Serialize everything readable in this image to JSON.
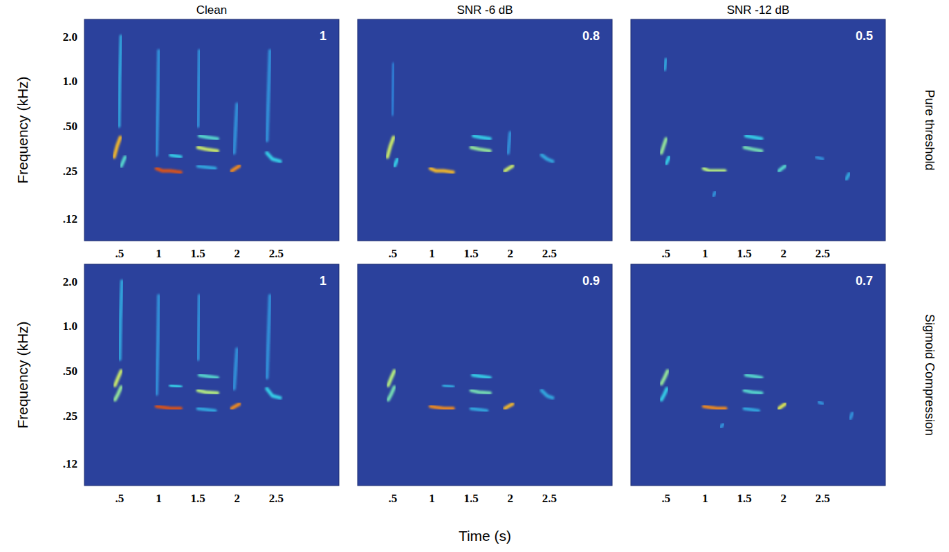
{
  "x_label": "Time (s)",
  "column_titles": [
    "Clean",
    "SNR -6 dB",
    "SNR -12 dB"
  ],
  "rows": [
    {
      "label": "Pure threshold",
      "y_label": "Frequency (kHz)"
    },
    {
      "label": "Sigmoid Compression",
      "y_label": "Frequency (kHz)"
    }
  ],
  "chart_data": [
    {
      "type": "spectrogram",
      "score": 1,
      "xlim": [
        0.05,
        3.3
      ],
      "ylim": [
        0.085,
        2.6
      ],
      "log": "y",
      "xticks": [
        {
          "value": 0.5,
          "label": ".5"
        },
        1,
        1.5,
        2,
        2.5
      ],
      "yticks": [
        {
          "value": 0.12,
          "label": ".12"
        },
        {
          "value": 0.25,
          "label": ".25"
        },
        {
          "value": 0.5,
          "label": ".50"
        },
        {
          "value": 1,
          "label": "1.0"
        },
        {
          "value": 2,
          "label": "2.0"
        }
      ],
      "syllables": [
        {
          "x": [
            0.43,
            0.47,
            0.51
          ],
          "y": [
            0.31,
            0.37,
            0.42
          ],
          "level": 0.85
        },
        {
          "x": [
            0.52,
            0.57
          ],
          "y": [
            0.27,
            0.31
          ],
          "level": 0.5
        },
        {
          "x": [
            0.49,
            0.5,
            0.52
          ],
          "y": [
            0.5,
            1.0,
            2.0
          ],
          "level": 0.35
        },
        {
          "x": [
            0.97,
            1.05,
            1.15,
            1.28
          ],
          "y": [
            0.26,
            0.25,
            0.25,
            0.245
          ],
          "level": 0.95
        },
        {
          "x": [
            1.15,
            1.28
          ],
          "y": [
            0.32,
            0.31
          ],
          "level": 0.45
        },
        {
          "x": [
            0.97,
            0.99,
            1.0
          ],
          "y": [
            0.32,
            0.8,
            1.6
          ],
          "level": 0.3
        },
        {
          "x": [
            1.5,
            1.6,
            1.75
          ],
          "y": [
            0.36,
            0.35,
            0.34
          ],
          "level": 0.7
        },
        {
          "x": [
            1.52,
            1.62,
            1.75
          ],
          "y": [
            0.43,
            0.42,
            0.41
          ],
          "level": 0.5
        },
        {
          "x": [
            1.5,
            1.72
          ],
          "y": [
            0.27,
            0.26
          ],
          "level": 0.35
        },
        {
          "x": [
            1.5,
            1.52
          ],
          "y": [
            0.5,
            1.6
          ],
          "level": 0.3
        },
        {
          "x": [
            1.93,
            1.98,
            2.03
          ],
          "y": [
            0.25,
            0.26,
            0.27
          ],
          "level": 0.9
        },
        {
          "x": [
            1.96,
            2.0
          ],
          "y": [
            0.33,
            0.7
          ],
          "level": 0.3
        },
        {
          "x": [
            2.38,
            2.45,
            2.55
          ],
          "y": [
            0.33,
            0.3,
            0.29
          ],
          "level": 0.45
        },
        {
          "x": [
            2.38,
            2.42
          ],
          "y": [
            0.4,
            1.6
          ],
          "level": 0.3
        }
      ]
    },
    {
      "type": "spectrogram",
      "score": 0.8,
      "xlim": [
        0.05,
        3.3
      ],
      "ylim": [
        0.085,
        2.6
      ],
      "log": "y",
      "tick_labels": "x",
      "xticks": [
        {
          "value": 0.5,
          "label": ".5"
        },
        1,
        1.5,
        2,
        2.5
      ],
      "syllables": [
        {
          "x": [
            0.43,
            0.47,
            0.51
          ],
          "y": [
            0.31,
            0.37,
            0.42
          ],
          "level": 0.7
        },
        {
          "x": [
            0.52,
            0.56
          ],
          "y": [
            0.27,
            0.3
          ],
          "level": 0.45
        },
        {
          "x": [
            0.49,
            0.51
          ],
          "y": [
            0.6,
            1.3
          ],
          "level": 0.25
        },
        {
          "x": [
            0.98,
            1.05,
            1.15,
            1.27
          ],
          "y": [
            0.26,
            0.25,
            0.25,
            0.245
          ],
          "level": 0.85
        },
        {
          "x": [
            1.5,
            1.6,
            1.74
          ],
          "y": [
            0.36,
            0.35,
            0.34
          ],
          "level": 0.6
        },
        {
          "x": [
            1.53,
            1.62,
            1.74
          ],
          "y": [
            0.43,
            0.42,
            0.41
          ],
          "level": 0.45
        },
        {
          "x": [
            1.93,
            1.98,
            2.03
          ],
          "y": [
            0.25,
            0.26,
            0.27
          ],
          "level": 0.7
        },
        {
          "x": [
            1.97,
            2.0
          ],
          "y": [
            0.33,
            0.45
          ],
          "level": 0.3
        },
        {
          "x": [
            2.4,
            2.47,
            2.54
          ],
          "y": [
            0.32,
            0.3,
            0.29
          ],
          "level": 0.35
        }
      ]
    },
    {
      "type": "spectrogram",
      "score": 0.5,
      "xlim": [
        0.05,
        3.3
      ],
      "ylim": [
        0.085,
        2.6
      ],
      "log": "y",
      "tick_labels": "x",
      "xticks": [
        {
          "value": 0.5,
          "label": ".5"
        },
        1,
        1.5,
        2,
        2.5
      ],
      "syllables": [
        {
          "x": [
            0.44,
            0.47,
            0.5
          ],
          "y": [
            0.33,
            0.37,
            0.41
          ],
          "level": 0.6
        },
        {
          "x": [
            0.5,
            0.54
          ],
          "y": [
            0.28,
            0.31
          ],
          "level": 0.45
        },
        {
          "x": [
            0.48,
            0.5
          ],
          "y": [
            1.2,
            1.4
          ],
          "level": 0.35
        },
        {
          "x": [
            0.98,
            1.05,
            1.15,
            1.25
          ],
          "y": [
            0.26,
            0.25,
            0.25,
            0.25
          ],
          "level": 0.65
        },
        {
          "x": [
            1.5,
            1.6,
            1.72
          ],
          "y": [
            0.36,
            0.35,
            0.34
          ],
          "level": 0.55
        },
        {
          "x": [
            1.52,
            1.62,
            1.72
          ],
          "y": [
            0.43,
            0.42,
            0.41
          ],
          "level": 0.45
        },
        {
          "x": [
            1.94,
            1.98,
            2.02
          ],
          "y": [
            0.25,
            0.26,
            0.27
          ],
          "level": 0.5
        },
        {
          "x": [
            2.42,
            2.5
          ],
          "y": [
            0.31,
            0.3
          ],
          "level": 0.3
        },
        {
          "x": [
            2.8,
            2.84
          ],
          "y": [
            0.22,
            0.24
          ],
          "level": 0.35
        },
        {
          "x": [
            1.1,
            1.13
          ],
          "y": [
            0.17,
            0.18
          ],
          "level": 0.3
        }
      ]
    },
    {
      "type": "spectrogram",
      "score": 1,
      "xlim": [
        0.05,
        3.3
      ],
      "ylim": [
        0.085,
        2.6
      ],
      "log": "y",
      "xticks": [
        {
          "value": 0.5,
          "label": ".5"
        },
        1,
        1.5,
        2,
        2.5
      ],
      "yticks": [
        {
          "value": 0.12,
          "label": ".12"
        },
        {
          "value": 0.25,
          "label": ".25"
        },
        {
          "value": 0.5,
          "label": ".50"
        },
        {
          "value": 1,
          "label": "1.0"
        },
        {
          "value": 2,
          "label": "2.0"
        }
      ],
      "syllables": [
        {
          "x": [
            0.44,
            0.48,
            0.52
          ],
          "y": [
            0.4,
            0.45,
            0.5
          ],
          "level": 0.7
        },
        {
          "x": [
            0.44,
            0.48,
            0.52
          ],
          "y": [
            0.32,
            0.35,
            0.39
          ],
          "level": 0.6
        },
        {
          "x": [
            0.5,
            0.51,
            0.53
          ],
          "y": [
            0.6,
            1.1,
            2.0
          ],
          "level": 0.35
        },
        {
          "x": [
            0.97,
            1.05,
            1.15,
            1.28
          ],
          "y": [
            0.29,
            0.285,
            0.28,
            0.28
          ],
          "level": 0.95
        },
        {
          "x": [
            1.15,
            1.28
          ],
          "y": [
            0.4,
            0.39
          ],
          "level": 0.45
        },
        {
          "x": [
            0.97,
            0.99,
            1.0
          ],
          "y": [
            0.35,
            0.8,
            1.6
          ],
          "level": 0.3
        },
        {
          "x": [
            1.5,
            1.6,
            1.75
          ],
          "y": [
            0.37,
            0.36,
            0.355
          ],
          "level": 0.65
        },
        {
          "x": [
            1.52,
            1.62,
            1.75
          ],
          "y": [
            0.47,
            0.46,
            0.45
          ],
          "level": 0.5
        },
        {
          "x": [
            1.5,
            1.72
          ],
          "y": [
            0.28,
            0.27
          ],
          "level": 0.35
        },
        {
          "x": [
            1.5,
            1.52
          ],
          "y": [
            0.6,
            1.6
          ],
          "level": 0.3
        },
        {
          "x": [
            1.93,
            1.98,
            2.03
          ],
          "y": [
            0.28,
            0.29,
            0.3
          ],
          "level": 0.9
        },
        {
          "x": [
            1.96,
            2.0
          ],
          "y": [
            0.38,
            0.7
          ],
          "level": 0.3
        },
        {
          "x": [
            2.38,
            2.45,
            2.55
          ],
          "y": [
            0.38,
            0.34,
            0.33
          ],
          "level": 0.45
        },
        {
          "x": [
            2.38,
            2.42
          ],
          "y": [
            0.45,
            1.6
          ],
          "level": 0.3
        }
      ]
    },
    {
      "type": "spectrogram",
      "score": 0.9,
      "xlim": [
        0.05,
        3.3
      ],
      "ylim": [
        0.085,
        2.6
      ],
      "log": "y",
      "tick_labels": "x",
      "xticks": [
        {
          "value": 0.5,
          "label": ".5"
        },
        1,
        1.5,
        2,
        2.5
      ],
      "syllables": [
        {
          "x": [
            0.44,
            0.48,
            0.52
          ],
          "y": [
            0.4,
            0.45,
            0.5
          ],
          "level": 0.65
        },
        {
          "x": [
            0.44,
            0.48,
            0.52
          ],
          "y": [
            0.32,
            0.35,
            0.39
          ],
          "level": 0.55
        },
        {
          "x": [
            0.98,
            1.05,
            1.15,
            1.27
          ],
          "y": [
            0.29,
            0.285,
            0.28,
            0.28
          ],
          "level": 0.9
        },
        {
          "x": [
            1.15,
            1.27
          ],
          "y": [
            0.4,
            0.39
          ],
          "level": 0.35
        },
        {
          "x": [
            1.5,
            1.6,
            1.74
          ],
          "y": [
            0.37,
            0.36,
            0.355
          ],
          "level": 0.55
        },
        {
          "x": [
            1.52,
            1.62,
            1.74
          ],
          "y": [
            0.47,
            0.46,
            0.45
          ],
          "level": 0.45
        },
        {
          "x": [
            1.5,
            1.7
          ],
          "y": [
            0.28,
            0.27
          ],
          "level": 0.35
        },
        {
          "x": [
            1.93,
            1.98,
            2.03
          ],
          "y": [
            0.28,
            0.29,
            0.3
          ],
          "level": 0.85
        },
        {
          "x": [
            2.4,
            2.47,
            2.54
          ],
          "y": [
            0.37,
            0.34,
            0.33
          ],
          "level": 0.35
        }
      ]
    },
    {
      "type": "spectrogram",
      "score": 0.7,
      "xlim": [
        0.05,
        3.3
      ],
      "ylim": [
        0.085,
        2.6
      ],
      "log": "y",
      "tick_labels": "x",
      "xticks": [
        {
          "value": 0.5,
          "label": ".5"
        },
        1,
        1.5,
        2,
        2.5
      ],
      "syllables": [
        {
          "x": [
            0.44,
            0.48,
            0.52
          ],
          "y": [
            0.41,
            0.45,
            0.5
          ],
          "level": 0.6
        },
        {
          "x": [
            0.44,
            0.48,
            0.51
          ],
          "y": [
            0.32,
            0.35,
            0.38
          ],
          "level": 0.45
        },
        {
          "x": [
            0.98,
            1.05,
            1.15,
            1.26
          ],
          "y": [
            0.29,
            0.285,
            0.28,
            0.28
          ],
          "level": 0.9
        },
        {
          "x": [
            1.5,
            1.6,
            1.72
          ],
          "y": [
            0.37,
            0.36,
            0.355
          ],
          "level": 0.5
        },
        {
          "x": [
            1.52,
            1.62,
            1.72
          ],
          "y": [
            0.47,
            0.46,
            0.45
          ],
          "level": 0.5
        },
        {
          "x": [
            1.5,
            1.68
          ],
          "y": [
            0.28,
            0.27
          ],
          "level": 0.35
        },
        {
          "x": [
            1.94,
            1.98,
            2.02
          ],
          "y": [
            0.28,
            0.29,
            0.3
          ],
          "level": 0.75
        },
        {
          "x": [
            2.45,
            2.5
          ],
          "y": [
            0.31,
            0.3
          ],
          "level": 0.3
        },
        {
          "x": [
            1.2,
            1.23
          ],
          "y": [
            0.21,
            0.22
          ],
          "level": 0.3
        },
        {
          "x": [
            2.85,
            2.88
          ],
          "y": [
            0.24,
            0.26
          ],
          "level": 0.3
        }
      ]
    }
  ]
}
